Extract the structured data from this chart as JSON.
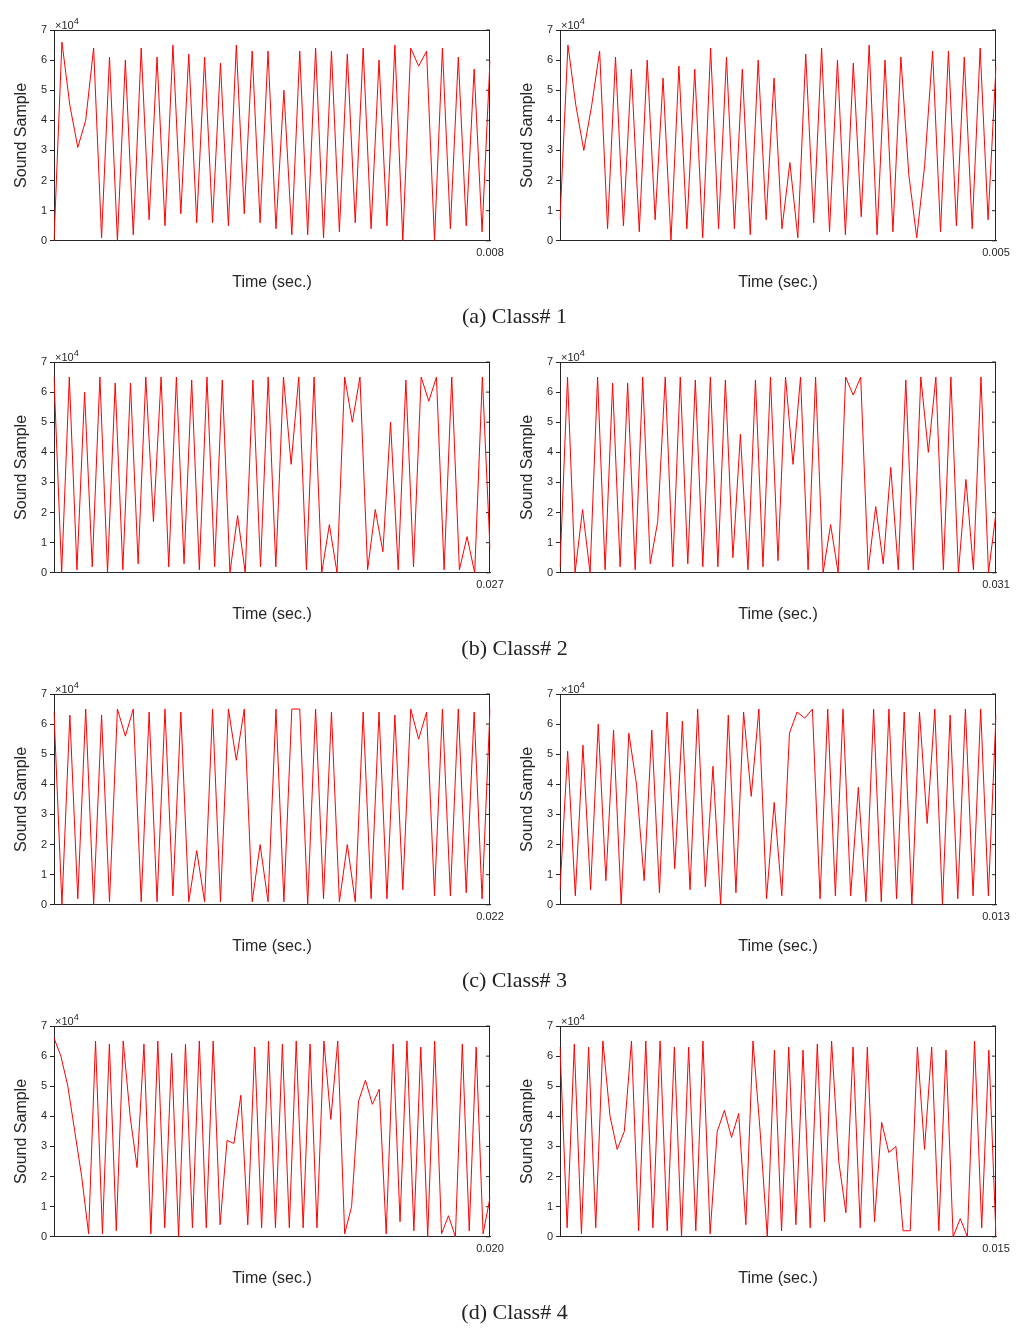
{
  "chart_data": [
    {
      "type": "line",
      "xlabel": "Time (sec.)",
      "ylabel": "Sound Sample",
      "color": "#ff0000",
      "annotations": [
        "×10$^{4}$",
        "0.008",
        "(a) Class# 1"
      ],
      "ylim": [
        0,
        7
      ],
      "yticks": [
        0,
        1,
        2,
        3,
        4,
        5,
        6,
        7
      ],
      "categories": [
        null,
        null,
        null,
        null,
        null,
        null,
        null,
        null,
        null,
        null,
        null,
        null,
        null,
        null,
        null,
        null,
        null,
        null,
        null,
        null,
        null,
        null,
        null,
        null,
        null,
        null,
        null,
        null,
        null,
        null,
        null,
        null,
        null,
        null,
        null,
        null,
        null,
        null,
        null,
        null,
        null,
        null,
        null,
        null,
        null,
        null,
        null,
        null,
        null,
        null,
        null,
        null,
        null,
        null,
        null,
        null
      ],
      "values": [
        0,
        6.6,
        4.5,
        3.1,
        4.0,
        6.4,
        0.1,
        6.1,
        0,
        6.0,
        0.2,
        6.4,
        0.7,
        6.1,
        0.5,
        6.5,
        0.9,
        6.2,
        0.6,
        6.1,
        0.6,
        5.9,
        0.5,
        6.5,
        0.9,
        6.3,
        0.6,
        6.3,
        0.4,
        5.0,
        0.2,
        6.3,
        0.2,
        6.4,
        0.1,
        6.3,
        0.3,
        6.2,
        0.6,
        6.4,
        0.4,
        6.0,
        0.5,
        6.5,
        0,
        6.4,
        5.8,
        6.3,
        0,
        6.4,
        0.4,
        6.1,
        0.5,
        5.7,
        0.3,
        6.0
      ]
    },
    {
      "type": "line",
      "xlabel": "Time (sec.)",
      "ylabel": "Sound Sample",
      "color": "#ff0000",
      "annotations": [
        "×10$^{4}$",
        "0.005"
      ],
      "ylim": [
        0,
        7
      ],
      "yticks": [
        0,
        1,
        2,
        3,
        4,
        5,
        6,
        7
      ],
      "categories": [
        null,
        null,
        null,
        null,
        null,
        null,
        null,
        null,
        null,
        null,
        null,
        null,
        null,
        null,
        null,
        null,
        null,
        null,
        null,
        null,
        null,
        null,
        null,
        null,
        null,
        null,
        null,
        null,
        null,
        null,
        null,
        null,
        null,
        null,
        null,
        null,
        null,
        null,
        null,
        null,
        null,
        null,
        null,
        null,
        null,
        null,
        null,
        null,
        null,
        null,
        null,
        null,
        null,
        null,
        null,
        null
      ],
      "values": [
        0.7,
        6.5,
        4.5,
        3.0,
        4.5,
        6.3,
        0.4,
        6.1,
        0.5,
        5.7,
        0.3,
        6.0,
        0.7,
        5.4,
        0,
        5.8,
        0.4,
        5.7,
        0.1,
        6.4,
        0.4,
        6.1,
        0.4,
        5.7,
        0.2,
        6.0,
        0.7,
        5.4,
        0.4,
        2.6,
        0.1,
        6.2,
        0.6,
        6.4,
        0.3,
        6.0,
        0.2,
        5.9,
        0.8,
        6.5,
        0.2,
        6.0,
        0.3,
        6.1,
        2.2,
        0.1,
        2.5,
        6.3,
        0.3,
        6.3,
        0.5,
        6.1,
        0.4,
        6.4,
        0.7,
        5.8
      ]
    },
    {
      "type": "line",
      "xlabel": "Time (sec.)",
      "ylabel": "Sound Sample",
      "color": "#ff0000",
      "annotations": [
        "×10$^{4}$",
        "0.027",
        "(b) Class# 2"
      ],
      "ylim": [
        0,
        7
      ],
      "yticks": [
        0,
        1,
        2,
        3,
        4,
        5,
        6,
        7
      ],
      "categories": [
        null,
        null,
        null,
        null,
        null,
        null,
        null,
        null,
        null,
        null,
        null,
        null,
        null,
        null,
        null,
        null,
        null,
        null,
        null,
        null,
        null,
        null,
        null,
        null,
        null,
        null,
        null,
        null,
        null,
        null,
        null,
        null,
        null,
        null,
        null,
        null,
        null,
        null,
        null,
        null,
        null,
        null,
        null,
        null,
        null,
        null,
        null,
        null,
        null,
        null,
        null,
        null,
        null,
        null,
        null,
        null,
        null,
        null
      ],
      "values": [
        6.5,
        0,
        6.5,
        0.1,
        6.0,
        0.2,
        6.5,
        0,
        6.3,
        0.1,
        6.3,
        0.3,
        6.5,
        1.7,
        6.5,
        0.2,
        6.5,
        0.3,
        6.4,
        0.1,
        6.5,
        0.2,
        6.4,
        0,
        1.9,
        0,
        6.4,
        0.2,
        6.5,
        0.2,
        6.5,
        3.6,
        6.5,
        0.1,
        6.5,
        0,
        1.6,
        0,
        6.5,
        5.0,
        6.5,
        0.1,
        2.1,
        0.7,
        5.0,
        0.1,
        6.4,
        0.2,
        6.5,
        5.7,
        6.5,
        0.1,
        6.5,
        0.1,
        1.2,
        0,
        6.5,
        0.8
      ]
    },
    {
      "type": "line",
      "xlabel": "Time (sec.)",
      "ylabel": "Sound Sample",
      "color": "#ff0000",
      "annotations": [
        "×10$^{4}$",
        "0.031"
      ],
      "ylim": [
        0,
        7
      ],
      "yticks": [
        0,
        1,
        2,
        3,
        4,
        5,
        6,
        7
      ],
      "categories": [
        null,
        null,
        null,
        null,
        null,
        null,
        null,
        null,
        null,
        null,
        null,
        null,
        null,
        null,
        null,
        null,
        null,
        null,
        null,
        null,
        null,
        null,
        null,
        null,
        null,
        null,
        null,
        null,
        null,
        null,
        null,
        null,
        null,
        null,
        null,
        null,
        null,
        null,
        null,
        null,
        null,
        null,
        null,
        null,
        null,
        null,
        null,
        null,
        null,
        null,
        null,
        null,
        null,
        null,
        null,
        null,
        null,
        null,
        null
      ],
      "values": [
        0.2,
        6.5,
        0,
        2.1,
        0,
        6.5,
        0.1,
        6.3,
        0.2,
        6.3,
        0.1,
        6.5,
        0.3,
        1.7,
        6.5,
        0.2,
        6.5,
        0.3,
        6.4,
        0.2,
        6.5,
        0.2,
        6.4,
        0.5,
        4.6,
        0.1,
        6.4,
        0.2,
        6.5,
        0.4,
        6.5,
        3.6,
        6.5,
        0.1,
        6.5,
        0,
        1.6,
        0,
        6.5,
        5.9,
        6.5,
        0.1,
        2.2,
        0.3,
        3.5,
        0.1,
        6.4,
        0.1,
        6.5,
        4.0,
        6.5,
        0.1,
        6.5,
        0,
        3.1,
        0.1,
        6.5,
        0,
        2.0
      ]
    },
    {
      "type": "line",
      "xlabel": "Time (sec.)",
      "ylabel": "Sound Sample",
      "color": "#ff0000",
      "annotations": [
        "×10$^{4}$",
        "0.022",
        "(c) Class# 3"
      ],
      "ylim": [
        0,
        7
      ],
      "yticks": [
        0,
        1,
        2,
        3,
        4,
        5,
        6,
        7
      ],
      "categories": [
        null,
        null,
        null,
        null,
        null,
        null,
        null,
        null,
        null,
        null,
        null,
        null,
        null,
        null,
        null,
        null,
        null,
        null,
        null,
        null,
        null,
        null,
        null,
        null,
        null,
        null,
        null,
        null,
        null,
        null,
        null,
        null,
        null,
        null,
        null,
        null,
        null,
        null,
        null,
        null,
        null,
        null,
        null,
        null,
        null,
        null,
        null,
        null,
        null,
        null,
        null,
        null,
        null,
        null,
        null,
        null
      ],
      "values": [
        6.4,
        0,
        6.3,
        0.2,
        6.5,
        0,
        6.3,
        0.1,
        6.5,
        5.6,
        6.5,
        0.1,
        6.4,
        0.1,
        6.5,
        0.3,
        6.4,
        0.1,
        1.8,
        0.1,
        6.5,
        0.1,
        6.5,
        4.8,
        6.5,
        0.1,
        2.0,
        0.1,
        6.5,
        0.1,
        6.5,
        6.5,
        0,
        6.5,
        0.2,
        6.4,
        0.1,
        2.0,
        0.1,
        6.4,
        0.2,
        6.4,
        0.2,
        6.3,
        0.5,
        6.5,
        5.5,
        6.4,
        0.3,
        6.5,
        0.3,
        6.5,
        0.4,
        6.4,
        0.2,
        6.5
      ]
    },
    {
      "type": "line",
      "xlabel": "Time (sec.)",
      "ylabel": "Sound Sample",
      "color": "#ff0000",
      "annotations": [
        "×10$^{4}$",
        "0.013"
      ],
      "ylim": [
        0,
        7
      ],
      "yticks": [
        0,
        1,
        2,
        3,
        4,
        5,
        6,
        7
      ],
      "categories": [
        null,
        null,
        null,
        null,
        null,
        null,
        null,
        null,
        null,
        null,
        null,
        null,
        null,
        null,
        null,
        null,
        null,
        null,
        null,
        null,
        null,
        null,
        null,
        null,
        null,
        null,
        null,
        null,
        null,
        null,
        null,
        null,
        null,
        null,
        null,
        null,
        null,
        null,
        null,
        null,
        null,
        null,
        null,
        null,
        null,
        null,
        null,
        null,
        null,
        null,
        null,
        null,
        null,
        null,
        null,
        null,
        null,
        null
      ],
      "values": [
        0.5,
        5.1,
        0.3,
        5.3,
        0.5,
        6.0,
        0.8,
        5.8,
        0,
        5.7,
        4.0,
        0.8,
        5.8,
        0.4,
        6.4,
        1.2,
        6.1,
        0.5,
        6.5,
        0.6,
        4.6,
        0,
        6.3,
        0.4,
        6.4,
        3.6,
        6.5,
        0.2,
        3.4,
        0.3,
        5.7,
        6.4,
        6.2,
        6.5,
        0.2,
        6.5,
        0.3,
        6.5,
        0.3,
        3.9,
        0.1,
        6.5,
        0.1,
        6.5,
        0.2,
        6.4,
        0,
        6.4,
        2.7,
        6.5,
        0,
        6.3,
        0.2,
        6.5,
        0.3,
        6.5,
        0.3,
        6.3
      ]
    },
    {
      "type": "line",
      "xlabel": "Time (sec.)",
      "ylabel": "Sound Sample",
      "color": "#ff0000",
      "annotations": [
        "×10$^{4}$",
        "0.020",
        "(d) Class# 4"
      ],
      "ylim": [
        0,
        7
      ],
      "yticks": [
        0,
        1,
        2,
        3,
        4,
        5,
        6,
        7
      ],
      "categories": [
        null,
        null,
        null,
        null,
        null,
        null,
        null,
        null,
        null,
        null,
        null,
        null,
        null,
        null,
        null,
        null,
        null,
        null,
        null,
        null,
        null,
        null,
        null,
        null,
        null,
        null,
        null,
        null,
        null,
        null,
        null,
        null,
        null,
        null,
        null,
        null,
        null,
        null,
        null,
        null,
        null,
        null,
        null,
        null,
        null,
        null,
        null,
        null,
        null,
        null,
        null,
        null,
        null,
        null,
        null,
        null,
        null,
        null,
        null,
        null,
        null,
        null,
        null,
        null
      ],
      "values": [
        6.6,
        6.0,
        5.0,
        3.5,
        2.0,
        0.1,
        6.5,
        0.1,
        6.4,
        0.2,
        6.5,
        4.0,
        2.3,
        6.4,
        0.1,
        6.5,
        0.3,
        6.1,
        0,
        6.4,
        0.3,
        6.5,
        0.3,
        6.5,
        0.4,
        3.2,
        3.1,
        4.7,
        0.4,
        6.3,
        0.3,
        6.5,
        0.3,
        6.4,
        0.3,
        6.5,
        0.3,
        6.4,
        0.3,
        6.5,
        3.9,
        6.5,
        0.1,
        1.0,
        4.5,
        5.2,
        4.4,
        4.9,
        0.1,
        6.4,
        0.5,
        6.5,
        0.2,
        6.3,
        0,
        6.5,
        0.1,
        0.7,
        0,
        6.4,
        0.2,
        6.3,
        0.1,
        1.3
      ]
    },
    {
      "type": "line",
      "xlabel": "Time (sec.)",
      "ylabel": "Sound Sample",
      "color": "#ff0000",
      "annotations": [
        "×10$^{4}$",
        "0.015"
      ],
      "ylim": [
        0,
        7
      ],
      "yticks": [
        0,
        1,
        2,
        3,
        4,
        5,
        6,
        7
      ],
      "categories": [
        null,
        null,
        null,
        null,
        null,
        null,
        null,
        null,
        null,
        null,
        null,
        null,
        null,
        null,
        null,
        null,
        null,
        null,
        null,
        null,
        null,
        null,
        null,
        null,
        null,
        null,
        null,
        null,
        null,
        null,
        null,
        null,
        null,
        null,
        null,
        null,
        null,
        null,
        null,
        null,
        null,
        null,
        null,
        null,
        null,
        null,
        null,
        null,
        null,
        null,
        null,
        null,
        null,
        null,
        null,
        null,
        null,
        null,
        null,
        null,
        null,
        null
      ],
      "values": [
        6.3,
        0.3,
        6.4,
        0.1,
        6.3,
        0.3,
        6.5,
        4.0,
        2.9,
        3.5,
        6.5,
        0.2,
        6.5,
        0.3,
        6.5,
        0.2,
        6.3,
        0,
        6.3,
        0.2,
        6.5,
        0.1,
        3.5,
        4.2,
        3.3,
        4.1,
        0.4,
        6.5,
        3.5,
        0,
        6.2,
        0.2,
        6.3,
        0.4,
        6.2,
        0.3,
        6.4,
        0.5,
        6.5,
        2.5,
        0.8,
        6.3,
        0.3,
        6.3,
        0.5,
        3.8,
        2.8,
        3.0,
        0.2,
        0.2,
        6.3,
        2.9,
        6.3,
        0.2,
        6.2,
        0,
        0.6,
        0,
        6.5,
        0.3,
        6.2,
        0
      ]
    }
  ]
}
